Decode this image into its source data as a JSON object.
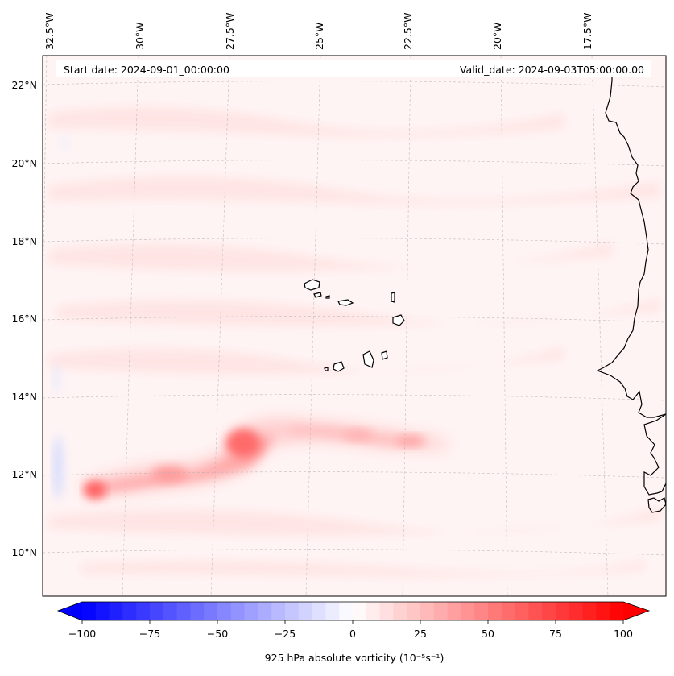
{
  "map": {
    "header": {
      "start_date": "Start date: 2024-09-01_00:00:00",
      "valid_date": "Valid_date: 2024-09-03T05:00:00.00"
    },
    "lon_labels": [
      "32.5°W",
      "30°W",
      "27.5°W",
      "25°W",
      "22.5°W",
      "20°W",
      "17.5°W"
    ],
    "lat_labels": [
      "22°N",
      "20°N",
      "18°N",
      "16°N",
      "14°N",
      "12°N",
      "10°N"
    ],
    "features": {
      "vortex_track": "positive vorticity streak along ~12-13°N from ~32°W to ~21°W",
      "land": [
        "Cape Verde islands",
        "West African coast"
      ]
    }
  },
  "colorbar": {
    "label": "925 hPa absolute vorticity (10⁻⁵s⁻¹)",
    "ticks": [
      "−100",
      "−75",
      "−50",
      "−25",
      "0",
      "25",
      "50",
      "75",
      "100"
    ],
    "range": [
      -100,
      100
    ],
    "colormap": "bwr",
    "colors": {
      "min": "#0000ff",
      "mid": "#ffffff",
      "max": "#ff0000"
    }
  }
}
